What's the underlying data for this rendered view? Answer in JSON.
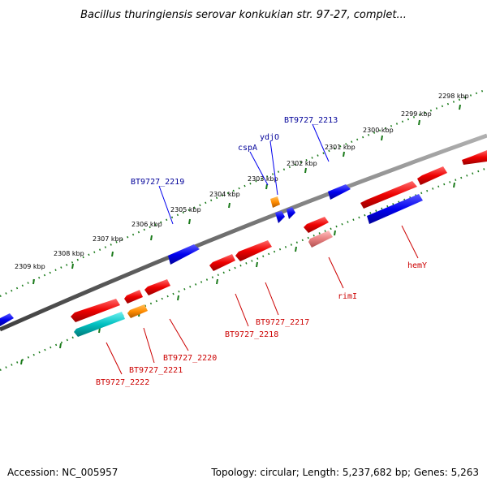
{
  "title": "Bacillus thuringiensis serovar konkukian str. 97-27, complet...",
  "footer": {
    "accession": "Accession: NC_005957",
    "topology": "Topology: circular; Length: 5,237,682 bp; Genes: 5,263"
  },
  "scale_labels": [
    "2298 kbp",
    "2299 kbp",
    "2300 kbp",
    "2301 kbp",
    "2302 kbp",
    "2303 kbp",
    "2304 kbp",
    "2305 kbp",
    "2306 kbp",
    "2307 kbp",
    "2308 kbp",
    "2309 kbp"
  ],
  "forward_gene_labels": [
    "BT9727_2213",
    "ydjO",
    "cspA",
    "BT9727_2219"
  ],
  "reverse_gene_labels": [
    "hemY",
    "rimI",
    "BT9727_2217",
    "BT9727_2218",
    "BT9727_2220",
    "BT9727_2221",
    "BT9727_2222"
  ],
  "colors": {
    "backbone": "#808080",
    "tick": "#1a7a1a",
    "forward_gene": "#0000ee",
    "reverse_gene": "#ee0000",
    "forward_label": "#000099",
    "reverse_label": "#cc0000",
    "orange_gene": "#ff8c00",
    "cyan_gene": "#00c0c0",
    "pink_gene": "#e88080"
  }
}
